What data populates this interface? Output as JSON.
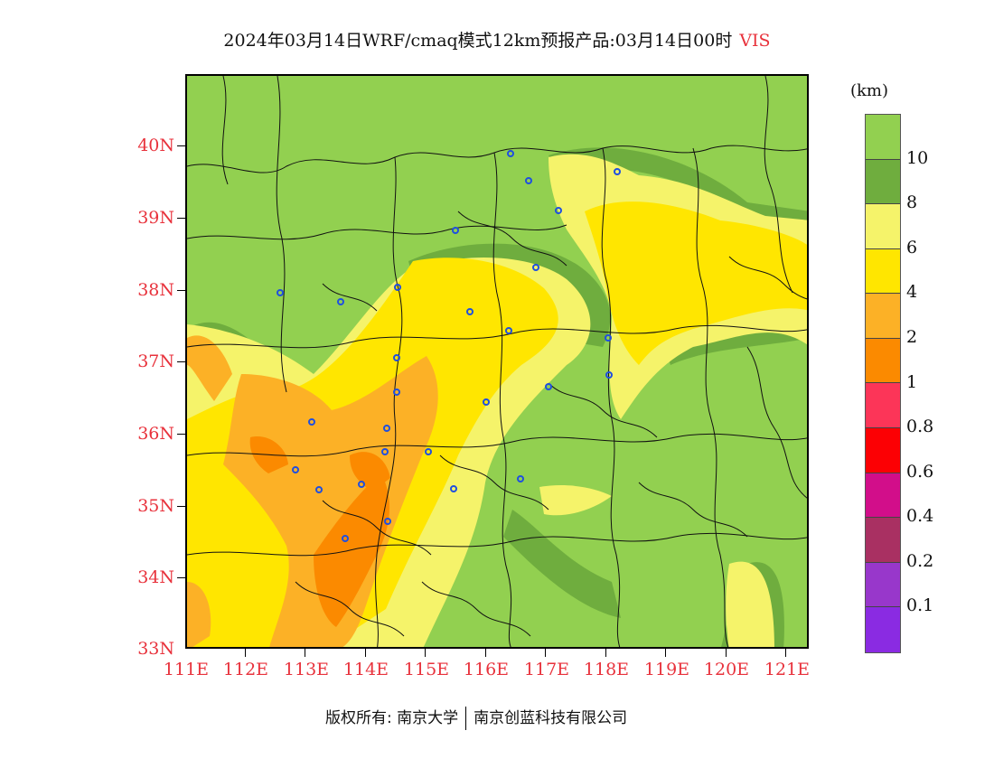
{
  "title": {
    "main": "2024年03月14日WRF/cmaq模式12km预报产品:03月14日00时",
    "variable": "VIS"
  },
  "colorbar": {
    "unit": "(km)",
    "swatches": [
      "#92d050",
      "#6fad3e",
      "#f5f36a",
      "#ffe600",
      "#fcb126",
      "#fb8a00",
      "#fc3558",
      "#fc0004",
      "#d20e8a",
      "#a93062",
      "#9837cb",
      "#8a2be2"
    ],
    "labels": [
      "10",
      "8",
      "6",
      "4",
      "2",
      "1",
      "0.8",
      "0.6",
      "0.4",
      "0.2",
      "0.1"
    ]
  },
  "axes": {
    "lat_labels": [
      "40N",
      "39N",
      "38N",
      "37N",
      "36N",
      "35N",
      "34N",
      "33N"
    ],
    "lon_labels": [
      "111E",
      "112E",
      "113E",
      "114E",
      "115E",
      "116E",
      "117E",
      "118E",
      "119E",
      "120E",
      "121E"
    ]
  },
  "footer": {
    "copyright": "版权所有: 南京大学",
    "company": "南京创蓝科技有限公司"
  }
}
